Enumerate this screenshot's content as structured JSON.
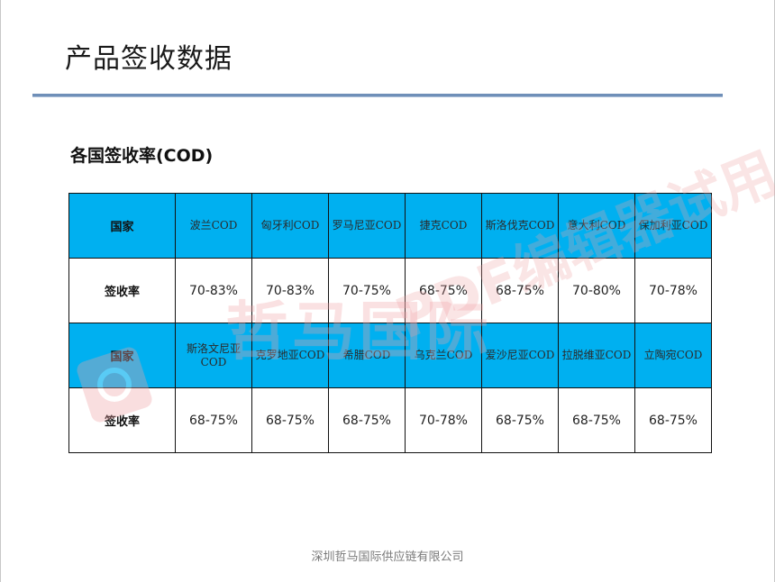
{
  "page": {
    "title": "产品签收数据",
    "subtitle": "各国签收率(COD)",
    "footer": "深圳哲马国际供应链有限公司"
  },
  "watermark": {
    "brand": "哲马国际",
    "overlay": "PDF编辑器试用",
    "color": "#f0a3a6"
  },
  "colors": {
    "header_fill": "#00b0f0",
    "rule": "#6f8fb8"
  },
  "table": {
    "row_label_country": "国家",
    "row_label_rate": "签收率",
    "block1": {
      "countries": [
        "波兰COD",
        "匈牙利COD",
        "罗马尼亚COD",
        "捷克COD",
        "斯洛伐克COD",
        "意大利COD",
        "保加利亚COD"
      ],
      "rates": [
        "70-83%",
        "70-83%",
        "70-75%",
        "68-75%",
        "68-75%",
        "70-80%",
        "70-78%"
      ]
    },
    "block2": {
      "countries": [
        "斯洛文尼亚COD",
        "克罗地亚COD",
        "希腊COD",
        "乌克兰COD",
        "爱沙尼亚COD",
        "拉脱维亚COD",
        "立陶宛COD"
      ],
      "rates": [
        "68-75%",
        "68-75%",
        "68-75%",
        "70-78%",
        "68-75%",
        "68-75%",
        "68-75%"
      ]
    }
  }
}
